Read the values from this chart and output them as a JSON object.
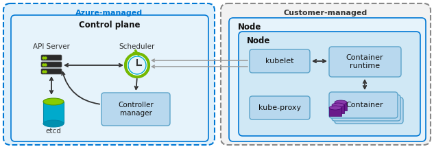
{
  "fig_width": 6.33,
  "fig_height": 2.17,
  "dpi": 100,
  "bg_color": "#ffffff",
  "azure_bg": "#dff0fb",
  "azure_border": "#0078d4",
  "azure_label_color": "#0078d4",
  "azure_label": "Azure-managed",
  "customer_bg": "#f2f2f2",
  "customer_border": "#888888",
  "customer_label": "Customer-managed",
  "control_plane_bg": "#e6f3fb",
  "control_plane_border": "#0078d4",
  "control_plane_label": "Control plane",
  "node_outer_bg": "#e6f3fb",
  "node_outer_border": "#0078d4",
  "node_outer_label": "Node",
  "node_inner_bg": "#d0e8f5",
  "node_inner_border": "#0078d4",
  "node_inner_label": "Node",
  "box_bg": "#b8d8ee",
  "box_border": "#5ba3c9",
  "api_server_label": "API Server",
  "scheduler_label": "Scheduler",
  "etcd_label": "etcd",
  "controller_manager_label": "Controller\nmanager",
  "kubelet_label": "kubelet",
  "container_runtime_label": "Container\nruntime",
  "kube_proxy_label": "kube-proxy",
  "container_label": "Container",
  "arrow_color": "#333333",
  "connector_color": "#999999",
  "server_color": "#2a2a2a",
  "server_dot_color": "#90cc00",
  "clock_blue": "#00aacc",
  "clock_green": "#76b900",
  "etcd_blue": "#00aacc",
  "etcd_green": "#88cc00",
  "container_icon_color": "#6a1a8a"
}
